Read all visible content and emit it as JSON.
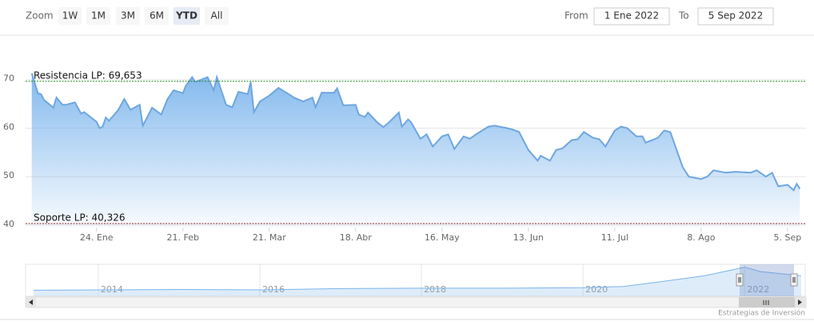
{
  "range_selector": {
    "zoom_label": "Zoom",
    "buttons": [
      "1W",
      "1M",
      "3M",
      "6M",
      "YTD",
      "All"
    ],
    "selected": 4,
    "from_label": "From",
    "from_value": "1 Ene 2022",
    "to_label": "To",
    "to_value": "5 Sep 2022"
  },
  "chart_data": {
    "type": "area",
    "x": [
      "2022-01-03",
      "2022-01-05",
      "2022-01-06",
      "2022-01-07",
      "2022-01-10",
      "2022-01-11",
      "2022-01-13",
      "2022-01-14",
      "2022-01-17",
      "2022-01-19",
      "2022-01-20",
      "2022-01-24",
      "2022-01-25",
      "2022-01-26",
      "2022-01-27",
      "2022-01-28",
      "2022-01-31",
      "2022-02-02",
      "2022-02-04",
      "2022-02-07",
      "2022-02-08",
      "2022-02-11",
      "2022-02-14",
      "2022-02-16",
      "2022-02-18",
      "2022-02-21",
      "2022-02-22",
      "2022-02-24",
      "2022-02-25",
      "2022-03-01",
      "2022-03-03",
      "2022-03-04",
      "2022-03-07",
      "2022-03-09",
      "2022-03-11",
      "2022-03-14",
      "2022-03-15",
      "2022-03-16",
      "2022-03-18",
      "2022-03-21",
      "2022-03-24",
      "2022-03-28",
      "2022-03-29",
      "2022-04-01",
      "2022-04-04",
      "2022-04-05",
      "2022-04-07",
      "2022-04-11",
      "2022-04-12",
      "2022-04-14",
      "2022-04-18",
      "2022-04-19",
      "2022-04-21",
      "2022-04-22",
      "2022-04-25",
      "2022-04-27",
      "2022-04-29",
      "2022-05-02",
      "2022-05-03",
      "2022-05-05",
      "2022-05-06",
      "2022-05-09",
      "2022-05-11",
      "2022-05-13",
      "2022-05-16",
      "2022-05-18",
      "2022-05-20",
      "2022-05-23",
      "2022-05-25",
      "2022-05-27",
      "2022-05-31",
      "2022-06-02",
      "2022-06-06",
      "2022-06-08",
      "2022-06-10",
      "2022-06-13",
      "2022-06-16",
      "2022-06-17",
      "2022-06-20",
      "2022-06-22",
      "2022-06-24",
      "2022-06-27",
      "2022-06-29",
      "2022-07-01",
      "2022-07-04",
      "2022-07-06",
      "2022-07-08",
      "2022-07-11",
      "2022-07-13",
      "2022-07-15",
      "2022-07-18",
      "2022-07-20",
      "2022-07-21",
      "2022-07-25",
      "2022-07-27",
      "2022-07-29",
      "2022-08-02",
      "2022-08-04",
      "2022-08-08",
      "2022-08-10",
      "2022-08-12",
      "2022-08-16",
      "2022-08-19",
      "2022-08-24",
      "2022-08-26",
      "2022-08-29",
      "2022-08-31",
      "2022-09-02",
      "2022-09-05",
      "2022-09-07",
      "2022-09-08",
      "2022-09-09"
    ],
    "series": [
      {
        "color": "#6ea6e0",
        "values": [
          71.3,
          67.2,
          67,
          65.8,
          64.2,
          66.3,
          64.8,
          64.8,
          65.3,
          63,
          63.3,
          61.3,
          60,
          60.3,
          62.2,
          61.5,
          63.7,
          66,
          63.8,
          64.8,
          60.5,
          64.2,
          62.8,
          66,
          67.8,
          67.2,
          68.8,
          70.5,
          69.5,
          70.5,
          67.8,
          70.5,
          64.8,
          64.3,
          67.5,
          67,
          69.5,
          63.3,
          65.5,
          66.7,
          68.3,
          66.7,
          66.3,
          65.5,
          66.3,
          64.3,
          67.3,
          67.3,
          68.2,
          64.7,
          64.8,
          62.8,
          62.3,
          63.2,
          61.2,
          60.2,
          61.3,
          63.2,
          60.3,
          61.8,
          61.2,
          57.8,
          58.7,
          56.2,
          58.3,
          58.7,
          55.7,
          58.3,
          57.8,
          58.7,
          60.3,
          60.5,
          60,
          59.7,
          59.2,
          55.5,
          53.3,
          54.3,
          53.3,
          55.5,
          55.8,
          57.5,
          57.7,
          59.2,
          58,
          57.7,
          56.2,
          59.5,
          60.3,
          60,
          58.3,
          58.3,
          57,
          58,
          59.5,
          59.2,
          52,
          50,
          49.5,
          50,
          51.3,
          50.8,
          51,
          50.8,
          51.3,
          50,
          50.8,
          48,
          48.3,
          47.2,
          48.5,
          47.5
        ]
      }
    ],
    "xlim": [
      "2022-01-01",
      "2022-09-11"
    ],
    "xticks": [
      {
        "value": "2022-01-24",
        "label": "24. Ene"
      },
      {
        "value": "2022-02-21",
        "label": "21. Feb"
      },
      {
        "value": "2022-03-21",
        "label": "21. Mar"
      },
      {
        "value": "2022-04-18",
        "label": "18. Abr"
      },
      {
        "value": "2022-05-16",
        "label": "16. May"
      },
      {
        "value": "2022-06-13",
        "label": "13. Jun"
      },
      {
        "value": "2022-07-11",
        "label": "11. Jul"
      },
      {
        "value": "2022-08-08",
        "label": "8. Ago"
      },
      {
        "value": "2022-09-05",
        "label": "5. Sep"
      }
    ],
    "ylim": [
      39.5,
      79
    ],
    "yticks": [
      40,
      50,
      60,
      70
    ],
    "grid": true,
    "plot_lines": [
      {
        "value": 69.653,
        "label": "Resistencia LP: 69,653",
        "color": "#1f8a1f"
      },
      {
        "value": 40.326,
        "label": "Soporte LP: 40,326",
        "color": "#8b1a1a"
      }
    ],
    "navigator": {
      "x": [
        2013.2,
        2014,
        2015,
        2016,
        2017,
        2018,
        2019,
        2020,
        2020.5,
        2021,
        2021.5,
        2022,
        2022.2,
        2022.7
      ],
      "values": [
        14,
        15,
        16,
        15,
        18,
        19,
        19,
        20,
        23,
        35,
        48,
        68,
        58,
        48
      ],
      "xlim": [
        2013.1,
        2022.75
      ],
      "ylim": [
        0,
        75
      ],
      "xticks": [
        2014,
        2016,
        2018,
        2020,
        2022
      ]
    }
  },
  "credits": "Estrategias de Inversión"
}
